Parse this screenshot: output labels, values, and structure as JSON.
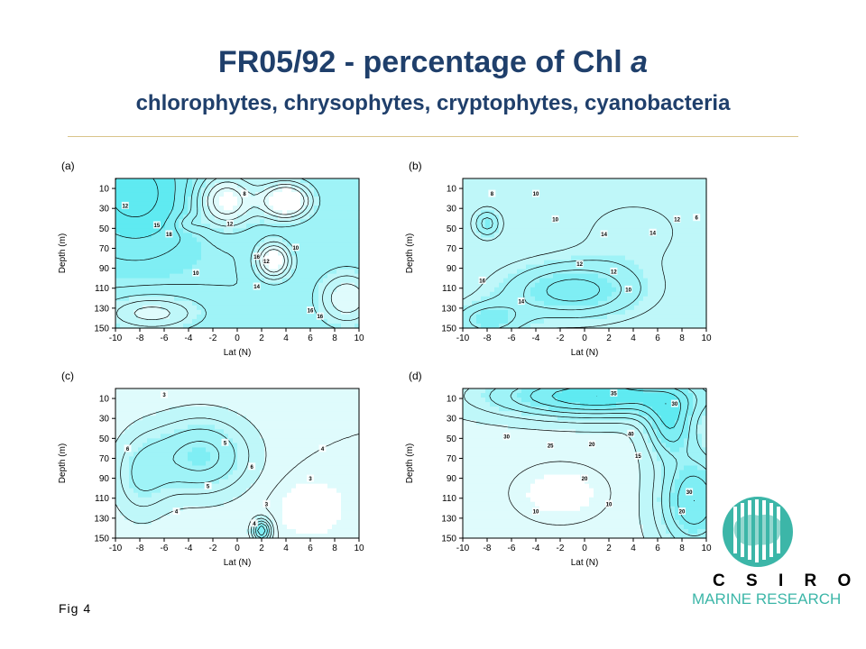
{
  "page": {
    "title_main": "FR05/92 - percentage of Chl",
    "title_italic": "a",
    "title_sub": "chlorophytes, chrysophytes, cryptophytes, cyanobacteria",
    "fig_label": "Fig 4"
  },
  "logo": {
    "org": "CSIRO",
    "org_spaced": "C S I R O",
    "division": "MARINE RESEARCH"
  },
  "colors": {
    "fill_high": "#3fe6ee",
    "fill_low": "#ffffff",
    "contour": "#000000",
    "title": "#1f3f6b",
    "logo_teal": "#3cb6a8"
  },
  "chart_data": [
    {
      "type": "contour",
      "panel": "(a)",
      "title": "(a)",
      "group": "chlorophytes",
      "xlabel": "Lat (N)",
      "ylabel": "Depth (m)",
      "x_ticks": [
        "-10",
        "-8",
        "-6",
        "-4",
        "-2",
        "0",
        "2",
        "4",
        "6",
        "8",
        "10"
      ],
      "y_ticks": [
        "10",
        "30",
        "50",
        "70",
        "90",
        "110",
        "130",
        "150"
      ],
      "xlim": [
        -10,
        10
      ],
      "ylim": [
        150,
        0
      ],
      "contour_labels": [
        "12",
        "15",
        "18",
        "10",
        "12",
        "8",
        "16",
        "12",
        "14",
        "10",
        "16",
        "16"
      ]
    },
    {
      "type": "contour",
      "panel": "(b)",
      "title": "(b)",
      "group": "chrysophytes",
      "xlabel": "Lat (N)",
      "ylabel": "Depth (m)",
      "x_ticks": [
        "-10",
        "-8",
        "-6",
        "-4",
        "-2",
        "0",
        "2",
        "4",
        "6",
        "8",
        "10"
      ],
      "y_ticks": [
        "10",
        "30",
        "50",
        "70",
        "90",
        "110",
        "130",
        "150"
      ],
      "xlim": [
        -10,
        10
      ],
      "ylim": [
        150,
        0
      ],
      "contour_labels": [
        "8",
        "10",
        "10",
        "12",
        "14",
        "12",
        "10",
        "14",
        "12",
        "16",
        "14",
        "6"
      ]
    },
    {
      "type": "contour",
      "panel": "(c)",
      "title": "(c)",
      "group": "cryptophytes",
      "xlabel": "Lat (N)",
      "ylabel": "Depth (m)",
      "x_ticks": [
        "-10",
        "-8",
        "-6",
        "-4",
        "-2",
        "0",
        "2",
        "4",
        "6",
        "8",
        "10"
      ],
      "y_ticks": [
        "10",
        "30",
        "50",
        "70",
        "90",
        "110",
        "130",
        "150"
      ],
      "xlim": [
        -10,
        10
      ],
      "ylim": [
        150,
        0
      ],
      "contour_labels": [
        "3",
        "6",
        "5",
        "6",
        "4",
        "3",
        "4",
        "3",
        "4",
        "5"
      ]
    },
    {
      "type": "contour",
      "panel": "(d)",
      "title": "(d)",
      "group": "cyanobacteria",
      "xlabel": "Lat (N)",
      "ylabel": "Depth (m)",
      "x_ticks": [
        "-10",
        "-8",
        "-6",
        "-4",
        "-2",
        "0",
        "2",
        "4",
        "6",
        "8",
        "10"
      ],
      "y_ticks": [
        "10",
        "30",
        "50",
        "70",
        "90",
        "110",
        "130",
        "150"
      ],
      "xlim": [
        -10,
        10
      ],
      "ylim": [
        150,
        0
      ],
      "contour_labels": [
        "35",
        "30",
        "30",
        "25",
        "20",
        "40",
        "10",
        "30",
        "20",
        "10",
        "20",
        "15"
      ]
    }
  ]
}
